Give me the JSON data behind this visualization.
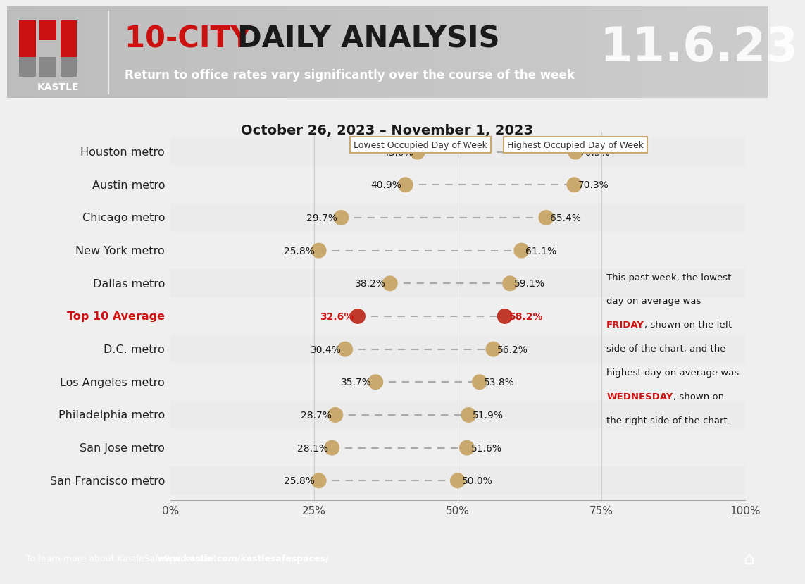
{
  "title": "October 26, 2023 – November 1, 2023",
  "header_title_red": "10-CITY ",
  "header_title_black": "DAILY ANALYSIS",
  "header_subtitle": "Return to office rates vary significantly over the course of the week",
  "header_date": "11.6.23",
  "footer_text": "To learn more about KastleSafeSpaces visit: ",
  "footer_url": "www.kastle.com/kastlesafespaces/",
  "categories": [
    "Houston metro",
    "Austin metro",
    "Chicago metro",
    "New York metro",
    "Dallas metro",
    "Top 10 Average",
    "D.C. metro",
    "Los Angeles metro",
    "Philadelphia metro",
    "San Jose metro",
    "San Francisco metro"
  ],
  "low_values": [
    43.0,
    40.9,
    29.7,
    25.8,
    38.2,
    32.6,
    30.4,
    35.7,
    28.7,
    28.1,
    25.8
  ],
  "high_values": [
    70.5,
    70.3,
    65.4,
    61.1,
    59.1,
    58.2,
    56.2,
    53.8,
    51.9,
    51.6,
    50.0
  ],
  "is_average": [
    false,
    false,
    false,
    false,
    false,
    true,
    false,
    false,
    false,
    false,
    false
  ],
  "dot_color_normal": "#C9A96E",
  "dot_color_average": "#C0392B",
  "line_color": "#AAAAAA",
  "header_bg": "#8C8C8C",
  "chart_bg": "#EFEFEF",
  "footer_bg": "#7A7A7A",
  "label_low": "Lowest Occupied Day of Week",
  "label_high": "Highest Occupied Day of Week",
  "xlim": [
    0,
    100
  ],
  "xticks": [
    0,
    25,
    50,
    75,
    100
  ],
  "xticklabels": [
    "0%",
    "25%",
    "50%",
    "75%",
    "100%"
  ]
}
